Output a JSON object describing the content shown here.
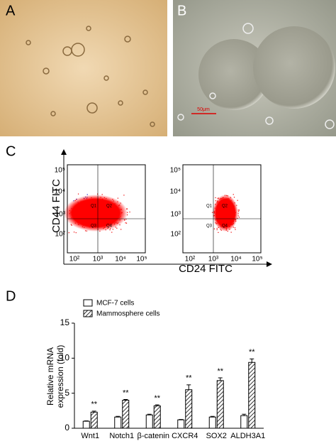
{
  "panel_labels": [
    "A",
    "B",
    "C",
    "D"
  ],
  "micrograph_b": {
    "scale_bar": "50μm"
  },
  "flow": {
    "y_label": "CD44 FITC",
    "x_label": "CD24 FITC",
    "ticks": [
      "10²",
      "10³",
      "10⁴",
      "10⁵"
    ],
    "quadrants": [
      "Q1",
      "Q2",
      "Q3",
      "Q4"
    ]
  },
  "chart_data": {
    "type": "bar",
    "y_label": [
      "Relative mRNA",
      "expression (fold)"
    ],
    "categories": [
      "Wnt1",
      "Notch1",
      "β-catenin",
      "CXCR4",
      "SOX2",
      "ALDH3A1"
    ],
    "series": [
      {
        "name": "MCF-7 cells",
        "color": "#ffffff",
        "values": [
          1.0,
          1.6,
          1.9,
          1.2,
          1.6,
          1.8
        ],
        "errors": [
          0.05,
          0.1,
          0.1,
          0.05,
          0.1,
          0.2
        ]
      },
      {
        "name": "Mammosphere cells",
        "color": "hatch",
        "values": [
          2.3,
          4.0,
          3.2,
          5.5,
          6.8,
          9.4
        ],
        "errors": [
          0.15,
          0.1,
          0.15,
          0.7,
          0.4,
          0.5
        ]
      }
    ],
    "significance": [
      "**",
      "**",
      "**",
      "**",
      "**",
      "**"
    ],
    "ylim": [
      0,
      15
    ],
    "yticks": [
      0,
      5,
      10,
      15
    ],
    "legend": "top-left"
  }
}
